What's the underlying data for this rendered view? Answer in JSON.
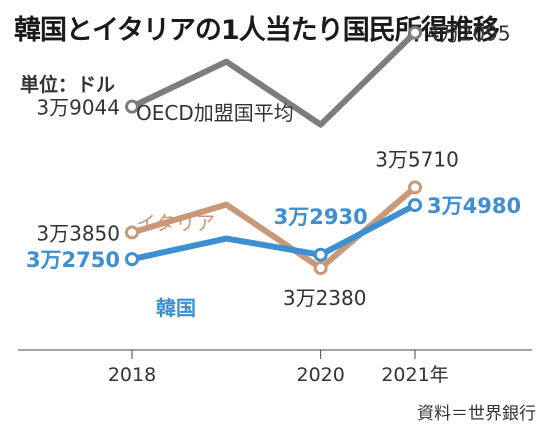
{
  "title": "韓国とイタリアの1人当たり国民所得推移",
  "unit_label": "単位：ドル",
  "source": "資料＝世界銀行",
  "chart_data": {
    "type": "line",
    "title": "韓国とイタリアの1人当たり国民所得推移",
    "ylabel": "単位：ドル",
    "x": [
      2018,
      2019,
      2020,
      2021
    ],
    "x_tick_labels": [
      "2018",
      "2020",
      "2021年"
    ],
    "x_tick_values": [
      2018,
      2020,
      2021
    ],
    "ylim": [
      29000,
      42000
    ],
    "grid": false,
    "series": [
      {
        "name": "OECD加盟国平均",
        "color": "#7d7d7d",
        "values": [
          39044,
          40900,
          38300,
          42095
        ],
        "point_labels": [
          {
            "x": 2018,
            "text": "3万9044"
          },
          {
            "x": 2021,
            "text": "4万2095"
          }
        ]
      },
      {
        "name": "イタリア",
        "color": "#c99878",
        "values": [
          33850,
          35000,
          32380,
          35710
        ],
        "point_labels": [
          {
            "x": 2018,
            "text": "3万3850"
          },
          {
            "x": 2020,
            "text": "3万2380"
          },
          {
            "x": 2021,
            "text": "3万5710"
          }
        ]
      },
      {
        "name": "韓国",
        "color": "#3d8fd1",
        "values": [
          32750,
          33600,
          32930,
          34980
        ],
        "point_labels": [
          {
            "x": 2018,
            "text": "3万2750"
          },
          {
            "x": 2020,
            "text": "3万2930"
          },
          {
            "x": 2021,
            "text": "3万4980"
          }
        ]
      }
    ]
  }
}
